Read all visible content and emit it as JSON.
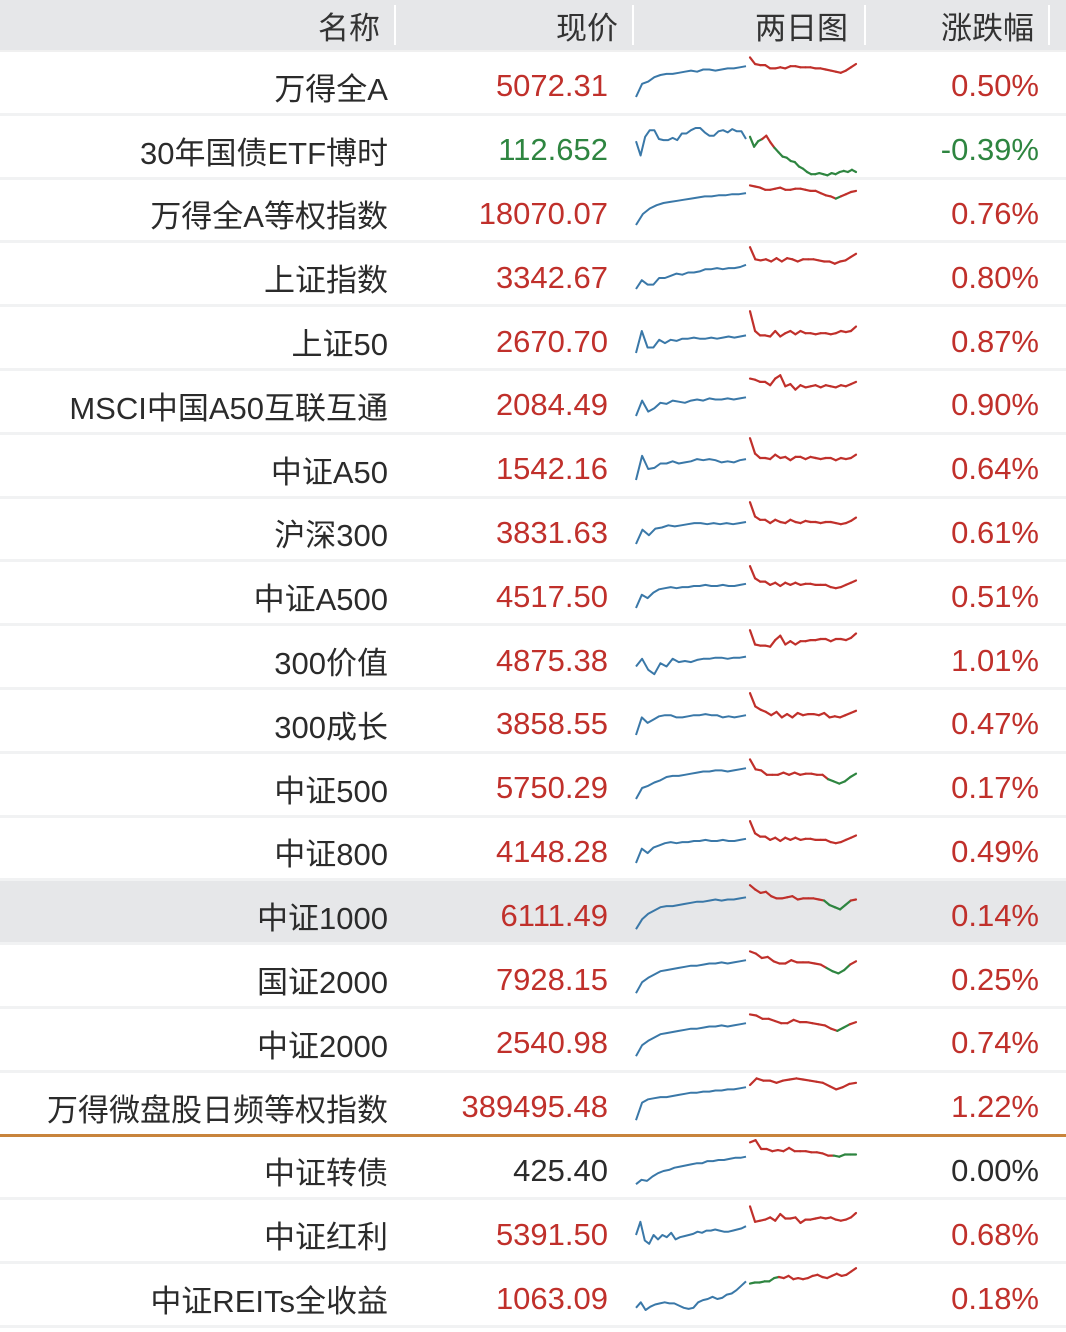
{
  "colors": {
    "up": "#c0302b",
    "down": "#2e8540",
    "flat": "#2b2b2b",
    "prev_day_line": "#3a78a8",
    "header_bg": "#e6e7e9",
    "divider": "#c8843c",
    "highlight_bg": "#e6e7e9"
  },
  "header": {
    "name": "名称",
    "price": "现价",
    "chart": "两日图",
    "change": "涨跌幅"
  },
  "rows": [
    {
      "name": "万得全A",
      "price": "5072.31",
      "change": "0.50%",
      "dir": "up",
      "prev": [
        40,
        28,
        26,
        22,
        20,
        19,
        19,
        18,
        17,
        16,
        17,
        15,
        15,
        16,
        15,
        14,
        14,
        13,
        12
      ],
      "today": [
        4,
        10,
        11,
        11,
        14,
        14,
        13,
        14,
        12,
        12,
        13,
        13,
        13,
        14,
        14,
        15,
        16,
        17,
        18,
        16,
        13,
        10
      ],
      "today_down": [],
      "highlight": false,
      "divider": false
    },
    {
      "name": "30年国债ETF博时",
      "price": "112.652",
      "change": "-0.39%",
      "dir": "down",
      "prev": [
        22,
        35,
        18,
        12,
        12,
        20,
        21,
        21,
        19,
        21,
        15,
        15,
        12,
        10,
        10,
        14,
        17,
        17,
        13,
        12,
        14,
        11,
        13,
        13,
        20
      ],
      "today": [
        18,
        27,
        22,
        20,
        17,
        23,
        28,
        32,
        36,
        37,
        40,
        41,
        45,
        47,
        50,
        52,
        52,
        51,
        52,
        53,
        51,
        52,
        50,
        49,
        50,
        48,
        50
      ],
      "today_down": [
        [
          0,
          3
        ],
        [
          6,
          26
        ]
      ],
      "highlight": false,
      "divider": false
    },
    {
      "name": "万得全A等权指数",
      "price": "18070.07",
      "change": "0.76%",
      "dir": "up",
      "prev": [
        40,
        30,
        25,
        22,
        20,
        19,
        18,
        17,
        16,
        15,
        14,
        14,
        13,
        13,
        12,
        12,
        11
      ],
      "today": [
        4,
        5,
        6,
        8,
        8,
        7,
        6,
        8,
        8,
        7,
        7,
        8,
        9,
        9,
        11,
        13,
        14,
        16,
        14,
        12,
        10,
        9
      ],
      "today_down": [
        [
          17,
          18
        ]
      ],
      "highlight": false,
      "divider": false
    },
    {
      "name": "上证指数",
      "price": "3342.67",
      "change": "0.80%",
      "dir": "up",
      "prev": [
        40,
        32,
        36,
        36,
        30,
        30,
        28,
        26,
        27,
        25,
        25,
        24,
        22,
        22,
        21,
        22,
        21,
        21,
        20,
        18
      ],
      "today": [
        2,
        13,
        14,
        13,
        15,
        12,
        15,
        12,
        13,
        15,
        13,
        13,
        13,
        14,
        15,
        15,
        17,
        15,
        14,
        11,
        8
      ],
      "today_down": [],
      "highlight": false,
      "divider": false
    },
    {
      "name": "上证50",
      "price": "2670.70",
      "change": "0.87%",
      "dir": "up",
      "prev": [
        40,
        20,
        35,
        35,
        28,
        31,
        28,
        29,
        27,
        27,
        26,
        27,
        27,
        26,
        27,
        26,
        25,
        26,
        25,
        24
      ],
      "today": [
        2,
        20,
        24,
        24,
        25,
        20,
        25,
        22,
        20,
        23,
        20,
        22,
        22,
        23,
        22,
        22,
        23,
        22,
        20,
        21,
        20,
        16
      ],
      "today_down": [],
      "highlight": false,
      "divider": false
    },
    {
      "name": "MSCI中国A50互联互通",
      "price": "2084.49",
      "change": "0.90%",
      "dir": "up",
      "prev": [
        40,
        26,
        36,
        33,
        28,
        29,
        26,
        27,
        28,
        26,
        25,
        26,
        24,
        25,
        25,
        24,
        25,
        24,
        23
      ],
      "today": [
        6,
        7,
        9,
        9,
        12,
        6,
        3,
        13,
        11,
        16,
        12,
        14,
        13,
        12,
        14,
        12,
        13,
        14,
        12,
        13,
        11,
        9
      ],
      "today_down": [],
      "highlight": false,
      "divider": false
    },
    {
      "name": "中证A50",
      "price": "1542.16",
      "change": "0.64%",
      "dir": "up",
      "prev": [
        40,
        18,
        30,
        29,
        25,
        25,
        23,
        25,
        24,
        23,
        21,
        22,
        21,
        22,
        24,
        23,
        24,
        22,
        21
      ],
      "today": [
        2,
        16,
        20,
        20,
        21,
        17,
        20,
        19,
        22,
        19,
        19,
        21,
        19,
        20,
        21,
        20,
        20,
        22,
        20,
        21,
        20,
        17
      ],
      "today_down": [],
      "highlight": false,
      "divider": false
    },
    {
      "name": "沪深300",
      "price": "3831.63",
      "change": "0.61%",
      "dir": "up",
      "prev": [
        40,
        27,
        32,
        26,
        25,
        23,
        24,
        23,
        22,
        21,
        21,
        22,
        21,
        22,
        21,
        22,
        21,
        20
      ],
      "today": [
        2,
        15,
        18,
        18,
        21,
        18,
        20,
        21,
        18,
        20,
        21,
        19,
        20,
        20,
        21,
        20,
        20,
        21,
        22,
        21,
        19,
        16
      ],
      "today_down": [],
      "highlight": false,
      "divider": false
    },
    {
      "name": "中证A500",
      "price": "4517.50",
      "change": "0.51%",
      "dir": "up",
      "prev": [
        40,
        28,
        31,
        26,
        23,
        22,
        21,
        22,
        21,
        21,
        20,
        20,
        19,
        20,
        20,
        19,
        20,
        20,
        19,
        18
      ],
      "today": [
        2,
        13,
        16,
        16,
        19,
        17,
        20,
        17,
        19,
        17,
        19,
        18,
        18,
        19,
        19,
        19,
        21,
        22,
        21,
        19,
        17,
        15
      ],
      "today_down": [],
      "highlight": false,
      "divider": false
    },
    {
      "name": "300价值",
      "price": "4875.38",
      "change": "1.01%",
      "dir": "up",
      "prev": [
        35,
        28,
        38,
        42,
        32,
        35,
        28,
        31,
        30,
        31,
        29,
        28,
        28,
        27,
        27,
        28,
        27,
        27,
        26
      ],
      "today": [
        2,
        15,
        16,
        16,
        17,
        11,
        7,
        15,
        12,
        15,
        12,
        12,
        11,
        11,
        10,
        10,
        12,
        10,
        10,
        11,
        9,
        5
      ],
      "today_down": [],
      "highlight": false,
      "divider": false
    },
    {
      "name": "300成长",
      "price": "3858.55",
      "change": "0.47%",
      "dir": "up",
      "prev": [
        40,
        24,
        29,
        26,
        23,
        22,
        22,
        24,
        24,
        23,
        22,
        22,
        21,
        22,
        22,
        24,
        23,
        24,
        23,
        22
      ],
      "today": [
        2,
        14,
        17,
        19,
        22,
        19,
        24,
        21,
        24,
        20,
        22,
        21,
        21,
        22,
        20,
        24,
        23,
        24,
        22,
        20,
        18
      ],
      "today_down": [],
      "highlight": false,
      "divider": false
    },
    {
      "name": "中证500",
      "price": "5750.29",
      "change": "0.17%",
      "dir": "up",
      "prev": [
        40,
        30,
        28,
        25,
        23,
        20,
        19,
        19,
        18,
        17,
        16,
        15,
        15,
        14,
        14,
        15,
        14,
        13,
        12
      ],
      "today": [
        4,
        13,
        14,
        18,
        18,
        18,
        16,
        18,
        16,
        18,
        17,
        17,
        18,
        18,
        22,
        24,
        26,
        24,
        20,
        17
      ],
      "today_down": [
        [
          14,
          19
        ]
      ],
      "highlight": false,
      "divider": false
    },
    {
      "name": "中证800",
      "price": "4148.28",
      "change": "0.49%",
      "dir": "up",
      "prev": [
        40,
        27,
        31,
        26,
        24,
        22,
        21,
        22,
        21,
        21,
        20,
        20,
        19,
        20,
        20,
        19,
        20,
        20,
        19,
        18
      ],
      "today": [
        2,
        13,
        16,
        16,
        19,
        17,
        20,
        17,
        19,
        17,
        19,
        18,
        18,
        19,
        19,
        19,
        21,
        22,
        21,
        19,
        17,
        15
      ],
      "today_down": [],
      "highlight": false,
      "divider": false
    },
    {
      "name": "中证1000",
      "price": "6111.49",
      "change": "0.14%",
      "dir": "up",
      "prev": [
        42,
        33,
        28,
        25,
        22,
        21,
        21,
        20,
        19,
        18,
        17,
        17,
        16,
        15,
        16,
        15,
        15,
        14,
        13
      ],
      "today": [
        2,
        6,
        9,
        8,
        12,
        14,
        14,
        13,
        12,
        15,
        14,
        14,
        14,
        15,
        16,
        20,
        22,
        24,
        20,
        16,
        15
      ],
      "today_down": [
        [
          14,
          19
        ]
      ],
      "highlight": true,
      "divider": false
    },
    {
      "name": "国证2000",
      "price": "7928.15",
      "change": "0.25%",
      "dir": "up",
      "prev": [
        42,
        32,
        28,
        25,
        22,
        21,
        20,
        19,
        18,
        17,
        17,
        16,
        15,
        15,
        14,
        15,
        14,
        13,
        12
      ],
      "today": [
        4,
        6,
        10,
        9,
        13,
        15,
        15,
        12,
        14,
        14,
        14,
        15,
        16,
        19,
        22,
        24,
        21,
        16,
        13
      ],
      "today_down": [
        [
          13,
          17
        ]
      ],
      "highlight": false,
      "divider": false
    },
    {
      "name": "中证2000",
      "price": "2540.98",
      "change": "0.74%",
      "dir": "up",
      "prev": [
        42,
        32,
        28,
        25,
        22,
        21,
        20,
        19,
        18,
        17,
        17,
        16,
        15,
        15,
        14,
        15,
        14,
        13,
        12
      ],
      "today": [
        4,
        5,
        8,
        8,
        10,
        12,
        12,
        9,
        11,
        11,
        12,
        13,
        14,
        17,
        19,
        16,
        13,
        11
      ],
      "today_down": [
        [
          14,
          16
        ]
      ],
      "highlight": false,
      "divider": false
    },
    {
      "name": "万得微盘股日频等权指数",
      "price": "389495.48",
      "change": "1.22%",
      "dir": "up",
      "prev": [
        42,
        26,
        23,
        22,
        21,
        21,
        20,
        19,
        18,
        17,
        17,
        16,
        16,
        15,
        15,
        14,
        14,
        13,
        12
      ],
      "today": [
        10,
        4,
        6,
        6,
        8,
        6,
        5,
        4,
        5,
        6,
        7,
        8,
        11,
        14,
        12,
        9,
        8
      ],
      "today_down": [],
      "highlight": false,
      "divider": true
    },
    {
      "name": "中证转债",
      "price": "425.40",
      "change": "0.00%",
      "dir": "flat",
      "prev": [
        42,
        38,
        39,
        35,
        32,
        30,
        29,
        27,
        26,
        25,
        24,
        23,
        23,
        21,
        21,
        20,
        20,
        19,
        18,
        18,
        17
      ],
      "today": [
        4,
        2,
        10,
        10,
        12,
        11,
        12,
        9,
        12,
        12,
        12,
        13,
        13,
        14,
        16,
        16,
        17,
        15,
        15,
        15
      ],
      "today_down": [
        [
          15,
          19
        ]
      ],
      "highlight": false,
      "divider": false
    },
    {
      "name": "中证红利",
      "price": "5391.50",
      "change": "0.68%",
      "dir": "up",
      "prev": [
        30,
        18,
        35,
        38,
        30,
        34,
        30,
        32,
        28,
        34,
        32,
        31,
        30,
        29,
        27,
        28,
        26,
        26,
        25,
        26,
        27,
        27,
        26,
        25,
        24,
        22
      ],
      "today": [
        4,
        18,
        17,
        16,
        14,
        17,
        11,
        15,
        15,
        14,
        19,
        16,
        16,
        15,
        14,
        15,
        14,
        16,
        17,
        16,
        14,
        10
      ],
      "today_down": [],
      "highlight": false,
      "divider": false
    },
    {
      "name": "中证REITs全收益",
      "price": "1063.09",
      "change": "0.18%",
      "dir": "up",
      "prev": [
        38,
        33,
        40,
        37,
        35,
        34,
        33,
        34,
        34,
        36,
        38,
        39,
        38,
        33,
        31,
        30,
        28,
        30,
        29,
        26,
        25,
        22,
        18,
        14
      ],
      "today": [
        16,
        15,
        15,
        14,
        14,
        11,
        10,
        11,
        9,
        12,
        11,
        12,
        11,
        9,
        8,
        10,
        11,
        9,
        7,
        9,
        8,
        5,
        2
      ],
      "today_down": [
        [
          0,
          6
        ]
      ],
      "highlight": false,
      "divider": false
    }
  ]
}
